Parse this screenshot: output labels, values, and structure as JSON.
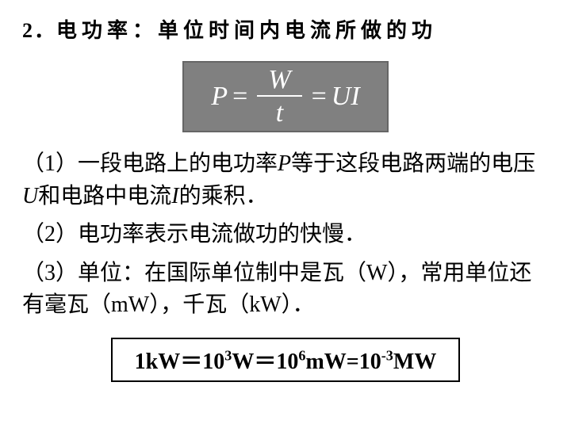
{
  "heading": {
    "number": "2．",
    "text": "电功率：单位时间内电流所做的功"
  },
  "formula": {
    "lhs": "P",
    "eq1": "=",
    "frac_top": "W",
    "frac_bot": "t",
    "eq2": "=",
    "rhs": "UI",
    "background_color": "#808080",
    "text_color": "#ffffff",
    "border_color": "#666666"
  },
  "points": {
    "p1_prefix": "（1）一段电路上的电功率",
    "p1_P": "P",
    "p1_mid1": "等于这段电路两端的电压",
    "p1_U": "U",
    "p1_mid2": "和电路中电流",
    "p1_I": "I",
    "p1_suffix": "的乘积．",
    "p2": "（2）电功率表示电流做功的快慢．",
    "p3": "（3）单位：在国际单位制中是瓦（W），常用单位还有毫瓦（mW），千瓦（kW）．"
  },
  "unit_line": {
    "t1": "1kW＝10",
    "e1": "3",
    "t2": "W＝10",
    "e2": "6",
    "t3": "mW=10",
    "e3": "-3",
    "t4": "MW"
  },
  "styling": {
    "page_bg": "#ffffff",
    "body_fontsize": 28,
    "heading_fontsize": 26,
    "formula_fontsize": 34,
    "unit_box_border": "#000000"
  }
}
